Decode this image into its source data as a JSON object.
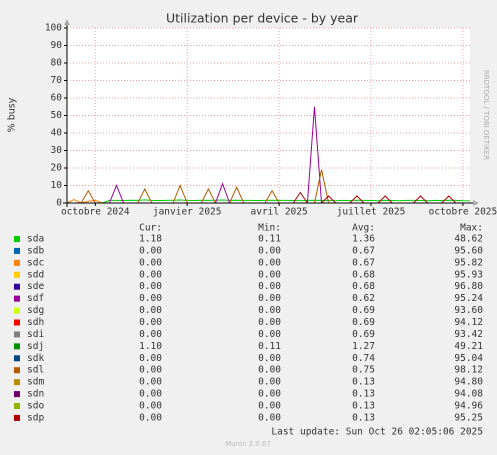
{
  "chart_data": {
    "type": "line",
    "title": "Utilization per device - by year",
    "y_label": "% busy",
    "side_label": "RRDTOOL / TOBI OETIKER",
    "categories": [
      null,
      null,
      null,
      null,
      "octobre 2024",
      null,
      null,
      null,
      null,
      null,
      null,
      null,
      null,
      null,
      null,
      null,
      null,
      "janvier 2025",
      null,
      null,
      null,
      null,
      null,
      null,
      null,
      null,
      null,
      null,
      null,
      null,
      "avril 2025",
      null,
      null,
      null,
      null,
      null,
      null,
      null,
      null,
      null,
      null,
      null,
      null,
      "juillet 2025",
      null,
      null,
      null,
      null,
      null,
      null,
      null,
      null,
      null,
      null,
      null,
      null,
      "octobre 2025",
      null
    ],
    "ylim": [
      0,
      100
    ],
    "yticks": [
      0,
      10,
      20,
      30,
      40,
      50,
      60,
      70,
      80,
      90,
      100
    ],
    "grid": true,
    "stat_headers": [
      "Cur:",
      "Min:",
      "Avg:",
      "Max:"
    ],
    "series": [
      {
        "name": "sda",
        "color": "#00cc00",
        "stats": [
          "1.18",
          "0.11",
          "1.36",
          "48.62"
        ],
        "values": [
          0,
          0,
          0,
          0,
          0,
          0,
          1.5,
          1.5,
          1.4,
          1.6,
          1.5,
          1.8,
          1.5,
          1.4,
          1.5,
          1.6,
          1.7,
          1.5,
          1.4,
          1.6,
          1.5,
          1.6,
          1.7,
          1.5,
          1.6,
          1.5,
          1.5,
          1.4,
          1.5,
          1.6,
          1.5,
          1.5,
          1.4,
          1.3,
          1.5,
          1.6,
          1.5,
          1.4,
          1.3,
          1.5,
          1.4,
          1.6,
          1.5,
          1.4,
          1.3,
          1.5,
          1.4,
          1.3,
          1.5,
          1.5,
          1.4,
          1.3,
          1.5,
          1.4,
          1.6,
          1.5,
          1.3,
          1.2
        ]
      },
      {
        "name": "sdb",
        "color": "#0066b3",
        "stats": [
          "0.00",
          "0.00",
          "0.67",
          "95.60"
        ],
        "values": [
          0,
          0,
          0,
          0,
          0,
          0,
          0,
          0,
          0,
          0,
          0,
          0,
          0,
          0,
          0,
          0,
          0,
          0,
          0,
          0,
          0,
          0,
          0,
          0,
          0,
          0,
          0,
          0,
          0,
          0,
          0,
          0,
          0,
          0,
          0,
          0,
          0,
          0,
          0,
          0,
          0,
          0,
          0,
          0,
          0,
          0,
          0,
          0,
          0,
          0,
          0,
          0,
          0,
          0,
          0,
          0,
          0,
          0
        ]
      },
      {
        "name": "sdc",
        "color": "#ff8000",
        "stats": [
          "0.00",
          "0.00",
          "0.67",
          "95.82"
        ],
        "values": [
          0,
          2,
          0,
          1,
          1.5,
          0,
          0,
          0,
          0,
          0,
          0,
          0,
          0,
          0,
          0,
          0,
          0,
          0,
          0,
          0,
          0,
          0,
          0,
          0,
          0,
          0,
          0,
          0,
          0,
          0,
          0,
          0,
          0,
          0,
          0,
          0,
          0,
          0,
          0,
          0,
          0,
          0,
          0,
          0,
          0,
          0,
          0,
          0,
          0,
          0,
          0,
          0,
          0,
          0,
          0,
          0,
          0,
          0
        ]
      },
      {
        "name": "sdd",
        "color": "#ffcc00",
        "stats": [
          "0.00",
          "0.00",
          "0.68",
          "95.93"
        ],
        "values": [
          0,
          0,
          0,
          0,
          0,
          0,
          0,
          0,
          0,
          0,
          0,
          0,
          0,
          0,
          0,
          0,
          0,
          0,
          0,
          0,
          0,
          0,
          0,
          0,
          0,
          0,
          0,
          0,
          0,
          0,
          0,
          0,
          0,
          0,
          0,
          0,
          0,
          0,
          0,
          0,
          0,
          0,
          0,
          0,
          0,
          0,
          0,
          0,
          0,
          0,
          0,
          0,
          0,
          0,
          0,
          0,
          0,
          0
        ]
      },
      {
        "name": "sde",
        "color": "#330099",
        "stats": [
          "0.00",
          "0.00",
          "0.68",
          "96.80"
        ],
        "values": [
          0,
          0,
          0,
          0,
          0,
          0,
          0,
          0,
          0,
          0,
          0,
          0,
          0,
          0,
          0,
          0,
          0,
          0,
          0,
          0,
          0,
          0,
          0,
          0,
          0,
          0,
          0,
          0,
          0,
          0,
          0,
          0,
          0,
          0,
          0,
          0,
          0,
          0,
          0,
          0,
          0,
          0,
          0,
          0,
          0,
          0,
          0,
          0,
          0,
          0,
          0,
          0,
          0,
          0,
          0,
          0,
          0,
          0
        ]
      },
      {
        "name": "sdf",
        "color": "#990099",
        "stats": [
          "0.00",
          "0.00",
          "0.62",
          "95.24"
        ],
        "values": [
          0,
          0,
          0,
          0,
          0,
          0,
          0,
          10,
          0,
          0,
          0,
          0,
          0,
          0,
          0,
          0,
          0,
          0,
          0,
          0,
          0,
          0,
          11,
          0,
          0,
          0,
          0,
          0,
          0,
          0,
          0,
          0,
          0,
          0,
          0,
          55,
          0,
          0,
          0,
          0,
          0,
          0,
          0,
          0,
          0,
          0,
          0,
          0,
          0,
          0,
          0,
          0,
          0,
          0,
          0,
          0,
          0,
          0
        ]
      },
      {
        "name": "sdg",
        "color": "#ccff00",
        "stats": [
          "0.00",
          "0.00",
          "0.69",
          "93.60"
        ],
        "values": [
          0,
          0,
          0,
          0,
          0,
          0,
          0,
          0,
          0,
          0,
          0,
          0,
          0,
          0,
          0,
          0,
          0,
          0,
          0,
          0,
          0,
          0,
          0,
          0,
          0,
          0,
          0,
          0,
          0,
          0,
          0,
          0,
          0,
          0,
          0,
          0,
          0,
          0,
          0,
          0,
          0,
          0,
          0,
          0,
          0,
          0,
          0,
          0,
          0,
          0,
          0,
          0,
          0,
          0,
          0,
          0,
          0,
          0
        ]
      },
      {
        "name": "sdh",
        "color": "#ff0000",
        "stats": [
          "0.00",
          "0.00",
          "0.69",
          "94.12"
        ],
        "values": [
          0,
          0,
          0,
          0,
          0,
          0,
          0,
          0,
          0,
          0,
          0,
          0,
          0,
          0,
          0,
          0,
          0,
          0,
          0,
          0,
          0,
          0,
          0,
          0,
          0,
          0,
          0,
          0,
          0,
          0,
          0,
          0,
          0,
          0,
          0,
          0,
          0,
          0,
          0,
          0,
          0,
          0,
          0,
          0,
          0,
          0,
          0,
          0,
          0,
          0,
          0,
          0,
          0,
          0,
          0,
          0,
          0,
          0
        ]
      },
      {
        "name": "sdi",
        "color": "#808080",
        "stats": [
          "0.00",
          "0.00",
          "0.69",
          "93.42"
        ],
        "values": [
          0,
          0,
          0,
          0,
          0,
          0,
          0,
          0,
          0,
          0,
          0,
          0,
          0,
          0,
          0,
          0,
          0,
          0,
          0,
          0,
          0,
          0,
          0,
          0,
          0,
          0,
          0,
          0,
          0,
          0,
          0,
          0,
          0,
          0,
          0,
          0,
          0,
          0,
          0,
          0,
          0,
          0,
          0,
          0,
          0,
          0,
          0,
          0,
          0,
          0,
          0,
          0,
          0,
          0,
          0,
          0,
          0,
          0
        ]
      },
      {
        "name": "sdj",
        "color": "#008f00",
        "stats": [
          "1.10",
          "0.11",
          "1.27",
          "49.21"
        ],
        "values": [
          0,
          0,
          0,
          0,
          0,
          0,
          0,
          0,
          0,
          0,
          0,
          0,
          0,
          0,
          0,
          0,
          0,
          0,
          0,
          0,
          0,
          0,
          0,
          0,
          0,
          0,
          0,
          0,
          0,
          0,
          0,
          0,
          0,
          0,
          0,
          0,
          0,
          0,
          0,
          0,
          0,
          0,
          0,
          0,
          0,
          0,
          0,
          0,
          0,
          0,
          0,
          0,
          0,
          0,
          0,
          0,
          0,
          0
        ]
      },
      {
        "name": "sdk",
        "color": "#00487d",
        "stats": [
          "0.00",
          "0.00",
          "0.74",
          "95.04"
        ],
        "values": [
          0,
          0,
          0,
          0,
          0,
          0,
          0,
          0,
          0,
          0,
          0,
          0,
          0,
          0,
          0,
          0,
          0,
          0,
          0,
          0,
          0,
          0,
          0,
          0,
          0,
          0,
          0,
          0,
          0,
          0,
          0,
          0,
          0,
          0,
          0,
          0,
          0,
          0,
          0,
          0,
          0,
          0,
          0,
          0,
          0,
          0,
          0,
          0,
          0,
          0,
          0,
          0,
          0,
          0,
          0,
          0,
          0,
          0
        ]
      },
      {
        "name": "sdl",
        "color": "#b35a00",
        "stats": [
          "0.00",
          "0.00",
          "0.75",
          "98.12"
        ],
        "values": [
          0,
          0,
          0,
          7,
          0,
          0,
          0,
          0,
          0,
          0,
          0,
          8,
          0,
          0,
          0,
          0,
          10,
          0,
          0,
          0,
          8,
          0,
          0,
          0,
          9,
          0,
          0,
          0,
          0,
          7,
          0,
          0,
          0,
          0,
          0,
          0,
          19,
          0,
          0,
          0,
          0,
          0,
          0,
          0,
          0,
          0,
          0,
          0,
          0,
          0,
          0,
          0,
          0,
          0,
          0,
          0,
          0,
          0
        ]
      },
      {
        "name": "sdm",
        "color": "#b38f00",
        "stats": [
          "0.00",
          "0.00",
          "0.13",
          "94.80"
        ],
        "values": [
          0,
          0,
          0,
          0,
          0,
          0,
          0,
          0,
          0,
          0,
          0,
          0,
          0,
          0,
          0,
          0,
          0,
          0,
          0,
          0,
          0,
          0,
          0,
          0,
          0,
          0,
          0,
          0,
          0,
          0,
          0,
          0,
          0,
          0,
          0,
          0,
          0,
          0,
          0,
          0,
          0,
          0,
          0,
          0,
          0,
          0,
          0,
          0,
          0,
          0,
          0,
          0,
          0,
          0,
          0,
          0,
          0,
          0
        ]
      },
      {
        "name": "sdn",
        "color": "#6b006b",
        "stats": [
          "0.00",
          "0.00",
          "0.13",
          "94.08"
        ],
        "values": [
          0,
          0,
          0,
          0,
          0,
          0,
          0,
          0,
          0,
          0,
          0,
          0,
          0,
          0,
          0,
          0,
          0,
          0,
          0,
          0,
          0,
          0,
          0,
          0,
          0,
          0,
          0,
          0,
          0,
          0,
          0,
          0,
          0,
          0,
          0,
          0,
          0,
          0,
          0,
          0,
          0,
          0,
          0,
          0,
          0,
          0,
          0,
          0,
          0,
          0,
          0,
          0,
          0,
          0,
          0,
          0,
          0,
          0
        ]
      },
      {
        "name": "sdo",
        "color": "#8fb300",
        "stats": [
          "0.00",
          "0.00",
          "0.13",
          "94.96"
        ],
        "values": [
          0,
          0,
          0,
          0,
          0,
          0,
          0,
          0,
          0,
          0,
          0,
          0,
          0,
          0,
          0,
          0,
          0,
          0,
          0,
          0,
          0,
          0,
          0,
          0,
          0,
          0,
          0,
          0,
          0,
          0,
          0,
          0,
          0,
          0,
          0,
          0,
          0,
          0,
          0,
          0,
          0,
          0,
          0,
          0,
          0,
          0,
          0,
          0,
          0,
          0,
          0,
          0,
          0,
          0,
          0,
          0,
          0,
          0
        ]
      },
      {
        "name": "sdp",
        "color": "#b30000",
        "stats": [
          "0.00",
          "0.00",
          "0.13",
          "95.25"
        ],
        "values": [
          0,
          0,
          0,
          0,
          0,
          0,
          0,
          0,
          0,
          0,
          0,
          0,
          0,
          0,
          0,
          0,
          0,
          0,
          0,
          0,
          0,
          0,
          0,
          0,
          0,
          0,
          0,
          0,
          0,
          0,
          0,
          0,
          0,
          6,
          0,
          0,
          0,
          4,
          0,
          0,
          0,
          4,
          0,
          0,
          0,
          4,
          0,
          0,
          0,
          0,
          4,
          0,
          0,
          0,
          4,
          0,
          0,
          0
        ]
      }
    ],
    "last_update": "Last update: Sun Oct 26 02:05:06 2025",
    "footer": "Munin 2.0.67"
  }
}
